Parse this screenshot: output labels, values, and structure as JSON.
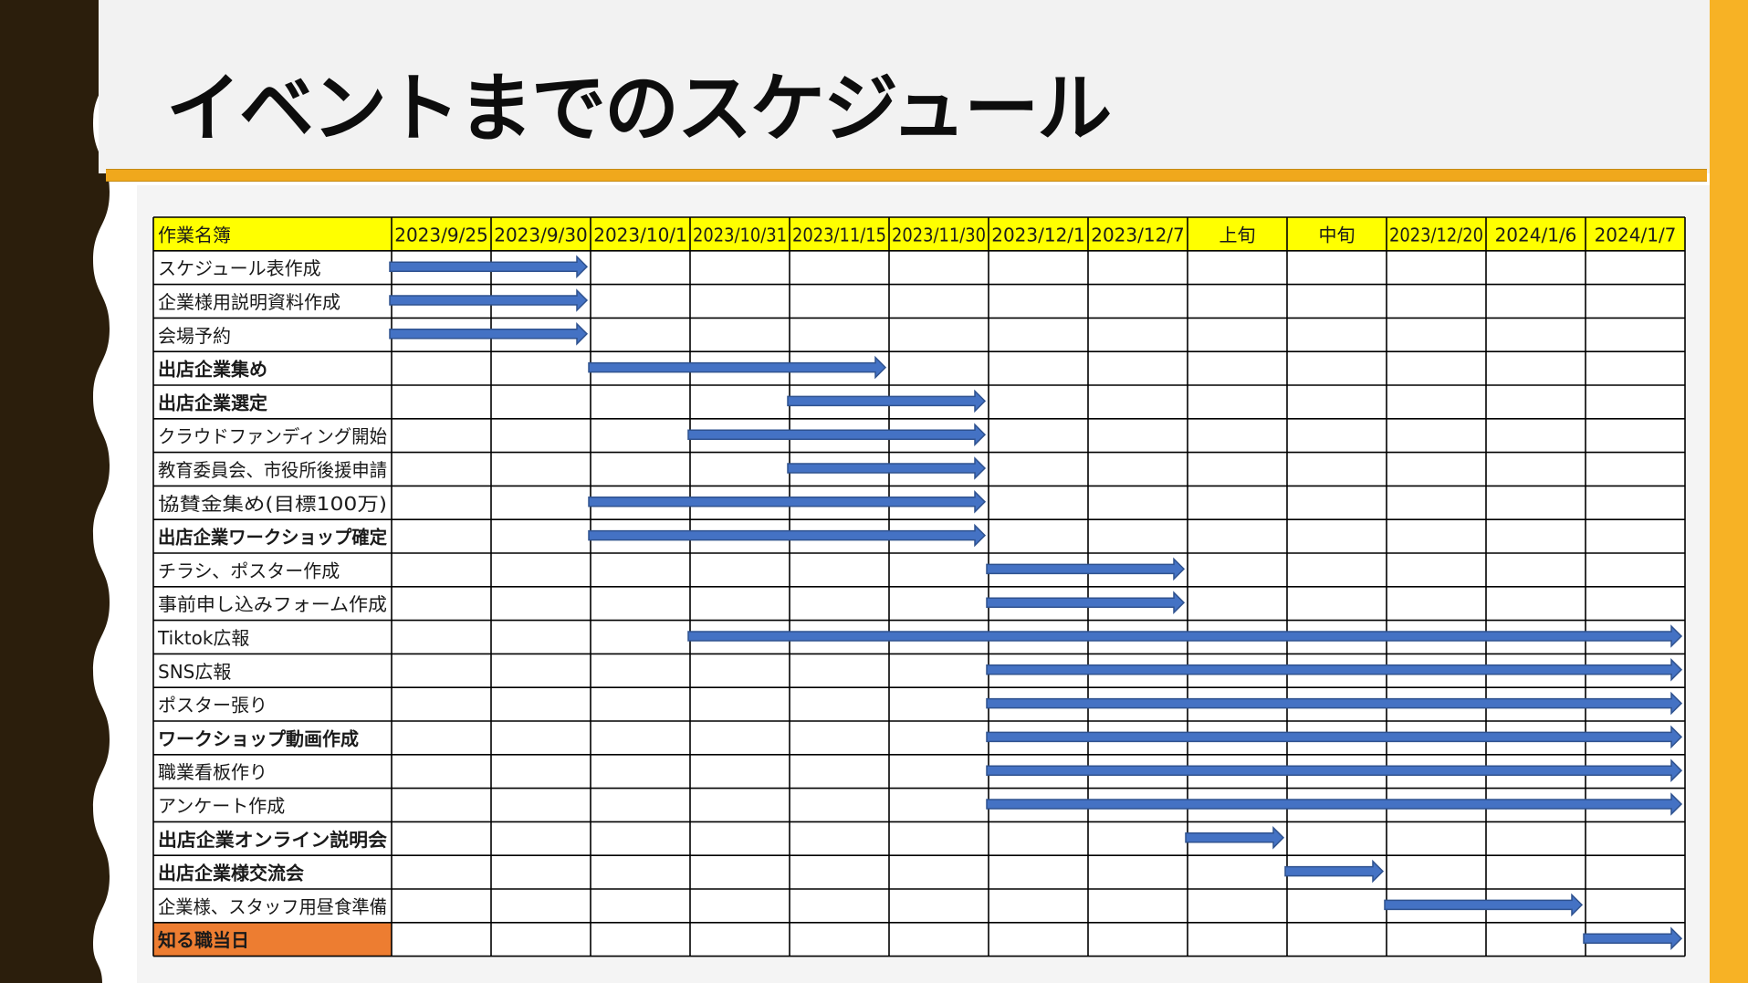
{
  "title": "イベントまでのスケジュール",
  "colors": {
    "left_band": "#2b1e0c",
    "header_background": "#f2f2f2",
    "accent_bar": "#f7b225",
    "title_rule": "#f0a81c",
    "header_row": "#ffff00",
    "highlight_task": "#ed7d31",
    "arrow_fill": "#4472c4",
    "arrow_stroke": "#2f528f",
    "grid_line": "#000000"
  },
  "chart_data": {
    "type": "table",
    "corner_header": "作業名簿",
    "columns": [
      "2023/9/25",
      "2023/9/30",
      "2023/10/1",
      "2023/10/31",
      "2023/11/15",
      "2023/11/30",
      "2023/12/1",
      "2023/12/7",
      "上旬",
      "中旬",
      "2023/12/20",
      "2024/1/6",
      "2024/1/7"
    ],
    "tasks": [
      {
        "name": "スケジュール表作成",
        "bold": false,
        "highlight": false,
        "start": 0,
        "end": 2
      },
      {
        "name": "企業様用説明資料作成",
        "bold": false,
        "highlight": false,
        "start": 0,
        "end": 2
      },
      {
        "name": "会場予約",
        "bold": false,
        "highlight": false,
        "start": 0,
        "end": 2
      },
      {
        "name": "出店企業集め",
        "bold": true,
        "highlight": false,
        "start": 2,
        "end": 5
      },
      {
        "name": "出店企業選定",
        "bold": true,
        "highlight": false,
        "start": 4,
        "end": 6
      },
      {
        "name": "クラウドファンディング開始",
        "bold": false,
        "highlight": false,
        "start": 3,
        "end": 6
      },
      {
        "name": "教育委員会、市役所後援申請",
        "bold": false,
        "highlight": false,
        "start": 4,
        "end": 6
      },
      {
        "name": "協賛金集め(目標100万)",
        "bold": false,
        "highlight": false,
        "start": 2,
        "end": 6
      },
      {
        "name": "出店企業ワークショップ確定",
        "bold": true,
        "highlight": false,
        "start": 2,
        "end": 6
      },
      {
        "name": "チラシ、ポスター作成",
        "bold": false,
        "highlight": false,
        "start": 6,
        "end": 8
      },
      {
        "name": "事前申し込みフォーム作成",
        "bold": false,
        "highlight": false,
        "start": 6,
        "end": 8
      },
      {
        "name": "Tiktok広報",
        "bold": false,
        "highlight": false,
        "start": 3,
        "end": 13
      },
      {
        "name": "SNS広報",
        "bold": false,
        "highlight": false,
        "start": 6,
        "end": 13
      },
      {
        "name": "ポスター張り",
        "bold": false,
        "highlight": false,
        "start": 6,
        "end": 13
      },
      {
        "name": "ワークショップ動画作成",
        "bold": true,
        "highlight": false,
        "start": 6,
        "end": 13
      },
      {
        "name": "職業看板作り",
        "bold": false,
        "highlight": false,
        "start": 6,
        "end": 13
      },
      {
        "name": "アンケート作成",
        "bold": false,
        "highlight": false,
        "start": 6,
        "end": 13
      },
      {
        "name": "出店企業オンライン説明会",
        "bold": true,
        "highlight": false,
        "start": 8,
        "end": 9
      },
      {
        "name": "出店企業様交流会",
        "bold": true,
        "highlight": false,
        "start": 9,
        "end": 10
      },
      {
        "name": "企業様、スタッフ用昼食準備",
        "bold": false,
        "highlight": false,
        "start": 10,
        "end": 12
      },
      {
        "name": "知る職当日",
        "bold": true,
        "highlight": true,
        "start": 12,
        "end": 13
      }
    ]
  }
}
